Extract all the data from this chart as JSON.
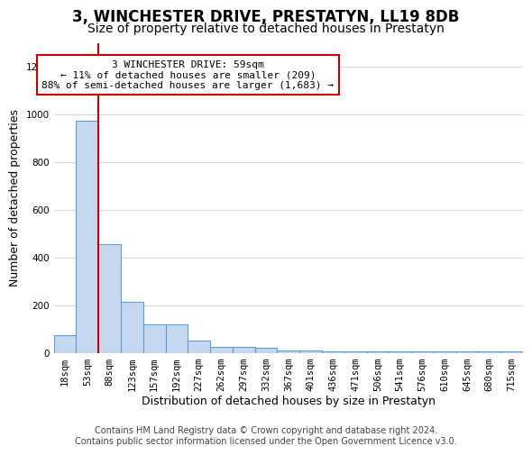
{
  "title": "3, WINCHESTER DRIVE, PRESTATYN, LL19 8DB",
  "subtitle": "Size of property relative to detached houses in Prestatyn",
  "xlabel": "Distribution of detached houses by size in Prestatyn",
  "ylabel": "Number of detached properties",
  "bar_values": [
    75,
    975,
    455,
    215,
    120,
    120,
    50,
    25,
    25,
    20,
    10,
    10,
    5,
    5,
    5,
    5,
    5,
    5,
    5,
    5,
    5
  ],
  "bar_labels": [
    "18sqm",
    "53sqm",
    "88sqm",
    "123sqm",
    "157sqm",
    "192sqm",
    "227sqm",
    "262sqm",
    "297sqm",
    "332sqm",
    "367sqm",
    "401sqm",
    "436sqm",
    "471sqm",
    "506sqm",
    "541sqm",
    "576sqm",
    "610sqm",
    "645sqm",
    "680sqm",
    "715sqm"
  ],
  "bar_color": "#c5d8f0",
  "bar_edge_color": "#5a9fd4",
  "grid_color": "#d0d8e8",
  "vline_x": 1.5,
  "vline_color": "#cc0000",
  "annotation_text": "3 WINCHESTER DRIVE: 59sqm\n← 11% of detached houses are smaller (209)\n88% of semi-detached houses are larger (1,683) →",
  "annotation_box_color": "#ffffff",
  "annotation_box_edge_color": "#cc0000",
  "ylim": [
    0,
    1300
  ],
  "yticks": [
    0,
    200,
    400,
    600,
    800,
    1000,
    1200
  ],
  "footer_line1": "Contains HM Land Registry data © Crown copyright and database right 2024.",
  "footer_line2": "Contains public sector information licensed under the Open Government Licence v3.0.",
  "title_fontsize": 12,
  "subtitle_fontsize": 10,
  "label_fontsize": 9,
  "tick_fontsize": 7.5,
  "footer_fontsize": 7
}
